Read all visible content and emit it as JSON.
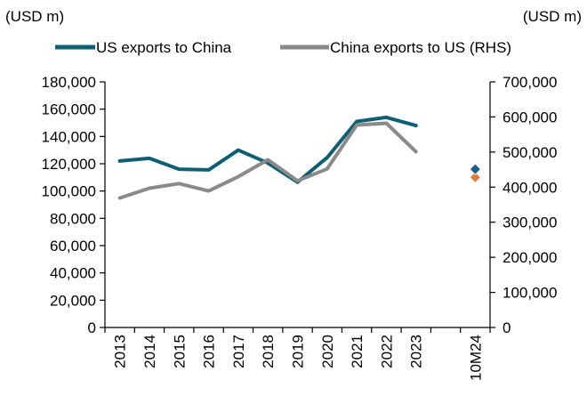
{
  "chart_data": {
    "type": "line",
    "left_unit": "(USD m)",
    "right_unit": "(USD m)",
    "categories": [
      "2013",
      "2014",
      "2015",
      "2016",
      "2017",
      "2018",
      "2019",
      "2020",
      "2021",
      "2022",
      "2023",
      "",
      "10M24"
    ],
    "y_left_ticks": [
      "0",
      "20,000",
      "40,000",
      "60,000",
      "80,000",
      "100,000",
      "120,000",
      "140,000",
      "160,000",
      "180,000"
    ],
    "y_right_ticks": [
      "0",
      "100,000",
      "200,000",
      "300,000",
      "400,000",
      "500,000",
      "600,000",
      "700,000"
    ],
    "ylim_left": [
      0,
      180000
    ],
    "ylim_right": [
      0,
      700000
    ],
    "series": [
      {
        "name": "US exports to China",
        "axis": "left",
        "color": "#0e5f74",
        "values": [
          122000,
          124000,
          116000,
          115500,
          130000,
          120500,
          106500,
          124500,
          151000,
          154000,
          148000,
          null,
          null
        ],
        "marker_value": 116000
      },
      {
        "name": "China exports to US (RHS)",
        "axis": "right",
        "color": "#8a8a8a",
        "values": [
          369000,
          397000,
          410000,
          389000,
          430000,
          478000,
          418000,
          452000,
          577000,
          582000,
          501000,
          null,
          null
        ],
        "marker_value": 428000
      }
    ],
    "marker_colors": {
      "left": "#1f5c8c",
      "right": "#e07b39"
    }
  }
}
